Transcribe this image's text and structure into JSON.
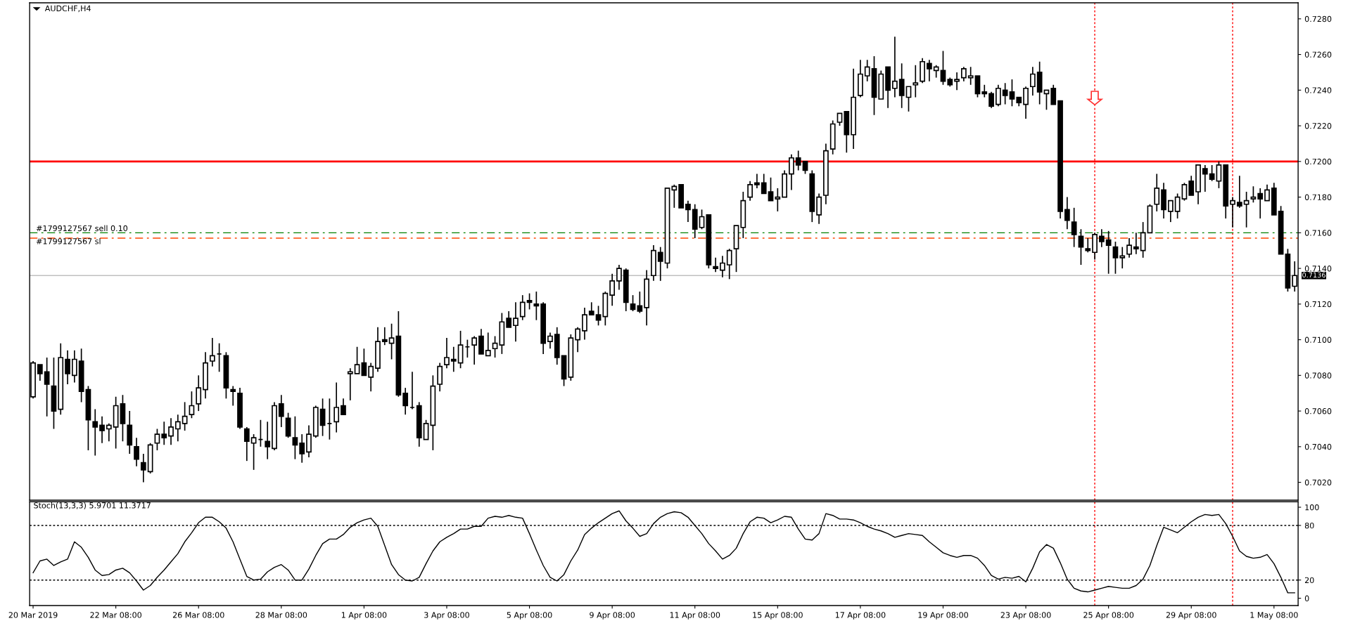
{
  "chart_data": [
    {
      "type": "candlestick",
      "title": "AUDCHF,H4",
      "categories": [
        null,
        null,
        null,
        null,
        null,
        null,
        null,
        null,
        null,
        null,
        null,
        null,
        null,
        null,
        null,
        null,
        null,
        null,
        null,
        null,
        null,
        null,
        null,
        null,
        null,
        null,
        null,
        null,
        null,
        null,
        null,
        null,
        null,
        null,
        null,
        null,
        null,
        null,
        null,
        null,
        null,
        null,
        null,
        null,
        null,
        null,
        null,
        null,
        null,
        null,
        null,
        null,
        null,
        null,
        null,
        null,
        null,
        null,
        null,
        null,
        null,
        null,
        null,
        null,
        null,
        null,
        null,
        null,
        null,
        null,
        null,
        null,
        null,
        null,
        null,
        null,
        null,
        null,
        null,
        null,
        null,
        null,
        null,
        null,
        null,
        null,
        null,
        null,
        null,
        null,
        null,
        null,
        null,
        null,
        null,
        null,
        null,
        null,
        null,
        null,
        null,
        null,
        null,
        null,
        null,
        null,
        null,
        null,
        null,
        null,
        null,
        null,
        null,
        null,
        null,
        null,
        null,
        null,
        null,
        null,
        null,
        null,
        null,
        null,
        null,
        null,
        null,
        null,
        null,
        null,
        null,
        null,
        null,
        null,
        null,
        null,
        null,
        null,
        null,
        null,
        null,
        null,
        null,
        null,
        null,
        null,
        null,
        null,
        null,
        null,
        null,
        null,
        null,
        null,
        null,
        null,
        null,
        null,
        null,
        null,
        null,
        null,
        null,
        null,
        null,
        null,
        null,
        null,
        null,
        null,
        null,
        null,
        null,
        null,
        null,
        null,
        null,
        null,
        null,
        null,
        null,
        null,
        null,
        null
      ],
      "ohlc": [
        [
          0.7068,
          0.7088,
          0.7067,
          0.7087
        ],
        [
          0.7086,
          0.7086,
          0.7077,
          0.7081
        ],
        [
          0.7082,
          0.709,
          0.7057,
          0.7075
        ],
        [
          0.7074,
          0.709,
          0.705,
          0.706
        ],
        [
          0.7061,
          0.7098,
          0.7058,
          0.709
        ],
        [
          0.7089,
          0.7094,
          0.7075,
          0.7081
        ],
        [
          0.708,
          0.7094,
          0.7076,
          0.7089
        ],
        [
          0.7088,
          0.7095,
          0.7065,
          0.7071
        ],
        [
          0.7072,
          0.7074,
          0.7038,
          0.7055
        ],
        [
          0.7054,
          0.7061,
          0.7035,
          0.7051
        ],
        [
          0.7052,
          0.7057,
          0.7042,
          0.7049
        ],
        [
          0.705,
          0.7053,
          0.7043,
          0.7052
        ],
        [
          0.7051,
          0.7068,
          0.7039,
          0.7063
        ],
        [
          0.7064,
          0.7069,
          0.7043,
          0.7053
        ],
        [
          0.7052,
          0.706,
          0.7036,
          0.7041
        ],
        [
          0.704,
          0.7045,
          0.7029,
          0.7033
        ],
        [
          0.7031,
          0.7036,
          0.702,
          0.7027
        ],
        [
          0.7026,
          0.7042,
          0.7025,
          0.7041
        ],
        [
          0.7042,
          0.705,
          0.7038,
          0.7047
        ],
        [
          0.7047,
          0.7054,
          0.7041,
          0.7045
        ],
        [
          0.7046,
          0.7056,
          0.7041,
          0.7051
        ],
        [
          0.705,
          0.7058,
          0.7043,
          0.7054
        ],
        [
          0.7053,
          0.7065,
          0.7049,
          0.7057
        ],
        [
          0.7058,
          0.7071,
          0.7056,
          0.7063
        ],
        [
          0.7064,
          0.708,
          0.706,
          0.7073
        ],
        [
          0.7072,
          0.7093,
          0.7067,
          0.7087
        ],
        [
          0.7088,
          0.7101,
          0.7085,
          0.7091
        ],
        [
          0.7092,
          0.7098,
          0.7082,
          0.7092
        ],
        [
          0.7091,
          0.7093,
          0.7067,
          0.7073
        ],
        [
          0.7072,
          0.7074,
          0.7063,
          0.7071
        ],
        [
          0.707,
          0.7073,
          0.705,
          0.7051
        ],
        [
          0.705,
          0.7051,
          0.7032,
          0.7043
        ],
        [
          0.7042,
          0.7047,
          0.7027,
          0.7045
        ],
        [
          0.7044,
          0.7055,
          0.704,
          0.7044
        ],
        [
          0.7043,
          0.7054,
          0.7033,
          0.704
        ],
        [
          0.7039,
          0.7065,
          0.7038,
          0.7063
        ],
        [
          0.7064,
          0.7069,
          0.7051,
          0.7057
        ],
        [
          0.7056,
          0.7059,
          0.7045,
          0.7046
        ],
        [
          0.7045,
          0.7057,
          0.7033,
          0.7041
        ],
        [
          0.7042,
          0.7047,
          0.7031,
          0.7036
        ],
        [
          0.7037,
          0.7052,
          0.7034,
          0.7047
        ],
        [
          0.7046,
          0.7063,
          0.7045,
          0.7062
        ],
        [
          0.7061,
          0.7067,
          0.7046,
          0.7052
        ],
        [
          0.7053,
          0.7067,
          0.7044,
          0.7053
        ],
        [
          0.7054,
          0.7076,
          0.7048,
          0.7062
        ],
        [
          0.7063,
          0.7067,
          0.7058,
          0.7058
        ],
        [
          0.7081,
          0.7084,
          0.7066,
          0.7082
        ],
        [
          0.7081,
          0.7096,
          0.7081,
          0.7086
        ],
        [
          0.7087,
          0.7095,
          0.708,
          0.708
        ],
        [
          0.7079,
          0.7087,
          0.7071,
          0.7085
        ],
        [
          0.7084,
          0.7107,
          0.7082,
          0.7099
        ],
        [
          0.71,
          0.7107,
          0.7097,
          0.7099
        ],
        [
          0.7098,
          0.7109,
          0.7089,
          0.7101
        ],
        [
          0.7102,
          0.7116,
          0.7068,
          0.7069
        ],
        [
          0.707,
          0.7073,
          0.7058,
          0.7063
        ],
        [
          0.7062,
          0.7082,
          0.7061,
          0.7062
        ],
        [
          0.7063,
          0.7065,
          0.704,
          0.7045
        ],
        [
          0.7044,
          0.7055,
          0.7044,
          0.7053
        ],
        [
          0.7052,
          0.708,
          0.7038,
          0.7074
        ],
        [
          0.7075,
          0.7087,
          0.7071,
          0.7085
        ],
        [
          0.7086,
          0.7101,
          0.7084,
          0.709
        ],
        [
          0.7089,
          0.7096,
          0.7082,
          0.7088
        ],
        [
          0.7087,
          0.7105,
          0.7084,
          0.7097
        ],
        [
          0.7096,
          0.71,
          0.709,
          0.7096
        ],
        [
          0.7097,
          0.7102,
          0.7086,
          0.7101
        ],
        [
          0.7102,
          0.7106,
          0.7092,
          0.7092
        ],
        [
          0.7091,
          0.7104,
          0.7091,
          0.7094
        ],
        [
          0.7095,
          0.7102,
          0.709,
          0.7098
        ],
        [
          0.7097,
          0.7115,
          0.7092,
          0.711
        ],
        [
          0.7112,
          0.7116,
          0.7107,
          0.7107
        ],
        [
          0.7108,
          0.7121,
          0.7099,
          0.7112
        ],
        [
          0.7113,
          0.7125,
          0.7111,
          0.7121
        ],
        [
          0.7122,
          0.7126,
          0.7117,
          0.7121
        ],
        [
          0.712,
          0.7127,
          0.7111,
          0.7119
        ],
        [
          0.712,
          0.7121,
          0.7092,
          0.7098
        ],
        [
          0.7099,
          0.7104,
          0.7095,
          0.7102
        ],
        [
          0.7103,
          0.7107,
          0.7086,
          0.709
        ],
        [
          0.7091,
          0.7091,
          0.7074,
          0.7078
        ],
        [
          0.7079,
          0.7103,
          0.7077,
          0.7101
        ],
        [
          0.71,
          0.7107,
          0.7093,
          0.7106
        ],
        [
          0.7105,
          0.7118,
          0.71,
          0.7114
        ],
        [
          0.7116,
          0.7121,
          0.7114,
          0.7114
        ],
        [
          0.7114,
          0.7119,
          0.7108,
          0.7111
        ],
        [
          0.7113,
          0.7127,
          0.7108,
          0.7126
        ],
        [
          0.7125,
          0.7137,
          0.7119,
          0.7133
        ],
        [
          0.7133,
          0.7142,
          0.7128,
          0.714
        ],
        [
          0.7139,
          0.714,
          0.7116,
          0.7121
        ],
        [
          0.712,
          0.7125,
          0.7116,
          0.7117
        ],
        [
          0.7119,
          0.7127,
          0.7115,
          0.7116
        ],
        [
          0.7118,
          0.7139,
          0.7108,
          0.7134
        ],
        [
          0.7136,
          0.7153,
          0.7133,
          0.715
        ],
        [
          0.7149,
          0.7152,
          0.7133,
          0.7144
        ],
        [
          0.7143,
          0.7185,
          0.714,
          0.7185
        ],
        [
          0.7184,
          0.7187,
          0.7174,
          0.7186
        ],
        [
          0.7187,
          0.7187,
          0.7174,
          0.7174
        ],
        [
          0.7176,
          0.7178,
          0.7166,
          0.7173
        ],
        [
          0.7173,
          0.7176,
          0.7157,
          0.7162
        ],
        [
          0.7163,
          0.7173,
          0.7162,
          0.7169
        ],
        [
          0.717,
          0.717,
          0.714,
          0.7142
        ],
        [
          0.7141,
          0.7146,
          0.7138,
          0.714
        ],
        [
          0.7139,
          0.7147,
          0.7135,
          0.7143
        ],
        [
          0.7142,
          0.7151,
          0.7134,
          0.715
        ],
        [
          0.7151,
          0.7164,
          0.7138,
          0.7164
        ],
        [
          0.7163,
          0.7183,
          0.7157,
          0.7178
        ],
        [
          0.718,
          0.7189,
          0.7178,
          0.7187
        ],
        [
          0.7188,
          0.7193,
          0.7185,
          0.7187
        ],
        [
          0.7188,
          0.7193,
          0.7182,
          0.7182
        ],
        [
          0.7183,
          0.7191,
          0.7178,
          0.7178
        ],
        [
          0.7179,
          0.7185,
          0.7172,
          0.718
        ],
        [
          0.718,
          0.7195,
          0.718,
          0.7193
        ],
        [
          0.7193,
          0.7204,
          0.7184,
          0.7202
        ],
        [
          0.7202,
          0.7206,
          0.7195,
          0.7198
        ],
        [
          0.72,
          0.72,
          0.7193,
          0.7195
        ],
        [
          0.7193,
          0.7195,
          0.7166,
          0.7172
        ],
        [
          0.717,
          0.7182,
          0.7165,
          0.718
        ],
        [
          0.7181,
          0.721,
          0.7176,
          0.7206
        ],
        [
          0.7207,
          0.7223,
          0.7204,
          0.7221
        ],
        [
          0.7222,
          0.7227,
          0.722,
          0.7227
        ],
        [
          0.7228,
          0.7228,
          0.7205,
          0.7215
        ],
        [
          0.7215,
          0.7252,
          0.7207,
          0.7236
        ],
        [
          0.7237,
          0.7257,
          0.7236,
          0.7249
        ],
        [
          0.7248,
          0.7257,
          0.7245,
          0.7253
        ],
        [
          0.7252,
          0.7259,
          0.7226,
          0.7236
        ],
        [
          0.7235,
          0.7251,
          0.7235,
          0.7249
        ],
        [
          0.7253,
          0.7253,
          0.723,
          0.724
        ],
        [
          0.7241,
          0.727,
          0.7236,
          0.7245
        ],
        [
          0.7246,
          0.7255,
          0.723,
          0.7237
        ],
        [
          0.7236,
          0.7242,
          0.7228,
          0.7242
        ],
        [
          0.7243,
          0.7254,
          0.7236,
          0.7244
        ],
        [
          0.7245,
          0.7258,
          0.7244,
          0.7256
        ],
        [
          0.7255,
          0.7257,
          0.7245,
          0.7252
        ],
        [
          0.7251,
          0.7254,
          0.7247,
          0.7253
        ],
        [
          0.7251,
          0.7262,
          0.7243,
          0.7245
        ],
        [
          0.7246,
          0.7247,
          0.7242,
          0.7243
        ],
        [
          0.7245,
          0.725,
          0.724,
          0.7246
        ],
        [
          0.7247,
          0.7253,
          0.7245,
          0.7252
        ],
        [
          0.7247,
          0.7253,
          0.7243,
          0.7248
        ],
        [
          0.7248,
          0.7248,
          0.7236,
          0.7238
        ],
        [
          0.7239,
          0.7243,
          0.7236,
          0.7238
        ],
        [
          0.7238,
          0.7239,
          0.723,
          0.7231
        ],
        [
          0.7232,
          0.7243,
          0.7231,
          0.7241
        ],
        [
          0.724,
          0.7244,
          0.7232,
          0.7237
        ],
        [
          0.7239,
          0.7246,
          0.7231,
          0.7235
        ],
        [
          0.7236,
          0.7236,
          0.7231,
          0.7233
        ],
        [
          0.7232,
          0.7242,
          0.7224,
          0.7241
        ],
        [
          0.7242,
          0.7253,
          0.7237,
          0.7249
        ],
        [
          0.725,
          0.7256,
          0.7232,
          0.7239
        ],
        [
          0.7238,
          0.724,
          0.7229,
          0.724
        ],
        [
          0.7241,
          0.7243,
          0.7232,
          0.7232
        ],
        [
          0.7234,
          0.7234,
          0.7168,
          0.7172
        ],
        [
          0.7173,
          0.718,
          0.7162,
          0.7167
        ],
        [
          0.7166,
          0.7174,
          0.7152,
          0.7159
        ],
        [
          0.7158,
          0.7162,
          0.7142,
          0.7152
        ],
        [
          0.7151,
          0.7157,
          0.7149,
          0.715
        ],
        [
          0.7149,
          0.716,
          0.7145,
          0.7159
        ],
        [
          0.7158,
          0.7162,
          0.7152,
          0.7155
        ],
        [
          0.7156,
          0.7161,
          0.7137,
          0.7153
        ],
        [
          0.7152,
          0.7155,
          0.7137,
          0.7146
        ],
        [
          0.7146,
          0.7152,
          0.714,
          0.7147
        ],
        [
          0.7148,
          0.7157,
          0.7146,
          0.7153
        ],
        [
          0.7152,
          0.716,
          0.7148,
          0.7151
        ],
        [
          0.715,
          0.7166,
          0.7146,
          0.716
        ],
        [
          0.716,
          0.7176,
          0.716,
          0.7175
        ],
        [
          0.7176,
          0.7193,
          0.7172,
          0.7185
        ],
        [
          0.7184,
          0.7188,
          0.7168,
          0.7173
        ],
        [
          0.7172,
          0.7178,
          0.7166,
          0.7178
        ],
        [
          0.7172,
          0.7182,
          0.7168,
          0.718
        ],
        [
          0.7179,
          0.7188,
          0.7178,
          0.7187
        ],
        [
          0.7189,
          0.7192,
          0.7181,
          0.7181
        ],
        [
          0.7183,
          0.7198,
          0.7176,
          0.7198
        ],
        [
          0.7196,
          0.7198,
          0.7183,
          0.7193
        ],
        [
          0.7193,
          0.7198,
          0.7189,
          0.719
        ],
        [
          0.7189,
          0.72,
          0.7185,
          0.7198
        ],
        [
          0.7198,
          0.7198,
          0.7168,
          0.7175
        ],
        [
          0.7176,
          0.718,
          0.7163,
          0.7178
        ],
        [
          0.7177,
          0.7192,
          0.7174,
          0.7175
        ],
        [
          0.7176,
          0.7183,
          0.7163,
          0.7178
        ],
        [
          0.7179,
          0.7186,
          0.7177,
          0.718
        ],
        [
          0.7182,
          0.7185,
          0.7168,
          0.7179
        ],
        [
          0.7178,
          0.7187,
          0.7178,
          0.7184
        ],
        [
          0.7185,
          0.7188,
          0.717,
          0.717
        ],
        [
          0.7172,
          0.7175,
          0.7148,
          0.7148
        ],
        [
          0.7148,
          0.7151,
          0.7127,
          0.7129
        ],
        [
          0.713,
          0.7144,
          0.7127,
          0.7136
        ]
      ],
      "ylim": [
        0.701,
        0.7289
      ],
      "yticks": [
        {
          "value": 0.702,
          "label": "0.7020"
        },
        {
          "value": 0.704,
          "label": "0.7040"
        },
        {
          "value": 0.706,
          "label": "0.7060"
        },
        {
          "value": 0.708,
          "label": "0.7080"
        },
        {
          "value": 0.71,
          "label": "0.7100"
        },
        {
          "value": 0.712,
          "label": "0.7120"
        },
        {
          "value": 0.714,
          "label": "0.7140"
        },
        {
          "value": 0.716,
          "label": "0.7160"
        },
        {
          "value": 0.718,
          "label": "0.7180"
        },
        {
          "value": 0.72,
          "label": "0.7200"
        },
        {
          "value": 0.722,
          "label": "0.7220"
        },
        {
          "value": 0.724,
          "label": "0.7240"
        },
        {
          "value": 0.726,
          "label": "0.7260"
        },
        {
          "value": 0.728,
          "label": "0.7280"
        }
      ],
      "tick_labels": "y",
      "ref_lines": [
        {
          "axis": "y",
          "value": 0.72,
          "color": "#ff0000",
          "line_style": "solid"
        },
        {
          "axis": "y",
          "value": 0.716,
          "label": "#1799127567 sell 0.10",
          "color": "#008000",
          "line_style": "dashdot"
        },
        {
          "axis": "y",
          "value": 0.7157,
          "label": "#1799127567 sl",
          "color": "#ff4500",
          "line_style": "dashdot"
        },
        {
          "axis": "y",
          "value": 0.7136,
          "label": "0.7136",
          "color": "#c0c0c0",
          "line_style": "solid"
        }
      ]
    },
    {
      "type": "line",
      "title": "Stoch(13,3,3) 5.9701 11.3717",
      "categories": [
        "20 Mar 2019",
        null,
        null,
        null,
        null,
        null,
        null,
        null,
        null,
        null,
        null,
        null,
        "22 Mar 08:00",
        null,
        null,
        null,
        null,
        null,
        null,
        null,
        null,
        null,
        null,
        null,
        "26 Mar 08:00",
        null,
        null,
        null,
        null,
        null,
        null,
        null,
        null,
        null,
        null,
        null,
        "28 Mar 08:00",
        null,
        null,
        null,
        null,
        null,
        null,
        null,
        null,
        null,
        null,
        null,
        "1 Apr 08:00",
        null,
        null,
        null,
        null,
        null,
        null,
        null,
        null,
        null,
        null,
        null,
        "3 Apr 08:00",
        null,
        null,
        null,
        null,
        null,
        null,
        null,
        null,
        null,
        null,
        null,
        "5 Apr 08:00",
        null,
        null,
        null,
        null,
        null,
        null,
        null,
        null,
        null,
        null,
        null,
        "9 Apr 08:00",
        null,
        null,
        null,
        null,
        null,
        null,
        null,
        null,
        null,
        null,
        null,
        "11 Apr 08:00",
        null,
        null,
        null,
        null,
        null,
        null,
        null,
        null,
        null,
        null,
        null,
        "15 Apr 08:00",
        null,
        null,
        null,
        null,
        null,
        null,
        null,
        null,
        null,
        null,
        null,
        "17 Apr 08:00",
        null,
        null,
        null,
        null,
        null,
        null,
        null,
        null,
        null,
        null,
        null,
        "19 Apr 08:00",
        null,
        null,
        null,
        null,
        null,
        null,
        null,
        null,
        null,
        null,
        null,
        "23 Apr 08:00",
        null,
        null,
        null,
        null,
        null,
        null,
        null,
        null,
        null,
        null,
        null,
        "25 Apr 08:00",
        null,
        null,
        null,
        null,
        null,
        null,
        null,
        null,
        null,
        null,
        null,
        "29 Apr 08:00",
        null,
        null,
        null,
        null,
        null,
        null,
        null,
        null,
        null,
        null,
        null,
        "1 May 08:00",
        null,
        null,
        null
      ],
      "series": [
        {
          "color": "#000000",
          "values": [
            28,
            41,
            43,
            36,
            40,
            43,
            62,
            56,
            45,
            31,
            25,
            26,
            31,
            33,
            28,
            19,
            9,
            14,
            23,
            31,
            40,
            49,
            62,
            72,
            83,
            89,
            89,
            84,
            77,
            62,
            43,
            24,
            20,
            21,
            29,
            34,
            37,
            31,
            20,
            20,
            32,
            47,
            60,
            65,
            65,
            70,
            78,
            83,
            86,
            88,
            79,
            58,
            37,
            26,
            20,
            19,
            23,
            38,
            52,
            62,
            67,
            71,
            76,
            76,
            79,
            79,
            88,
            90,
            89,
            91,
            89,
            88,
            71,
            53,
            36,
            23,
            19,
            26,
            41,
            53,
            70,
            77,
            83,
            88,
            93,
            96,
            85,
            77,
            68,
            71,
            82,
            89,
            93,
            95,
            94,
            89,
            80,
            71,
            60,
            52,
            43,
            47,
            55,
            71,
            84,
            89,
            88,
            83,
            86,
            90,
            89,
            76,
            65,
            64,
            71,
            93,
            91,
            87,
            87,
            86,
            83,
            79,
            76,
            74,
            71,
            67,
            69,
            71,
            70,
            69,
            62,
            56,
            50,
            47,
            45,
            47,
            47,
            44,
            36,
            25,
            21,
            23,
            22,
            24,
            18,
            33,
            51,
            59,
            55,
            39,
            21,
            11,
            8,
            7,
            9,
            11,
            13,
            12,
            11,
            11,
            14,
            21,
            36,
            58,
            78,
            75,
            72,
            78,
            84,
            89,
            92,
            91,
            92,
            82,
            68,
            52,
            46,
            44,
            45,
            48,
            38,
            23,
            6,
            6
          ]
        }
      ],
      "ylim": [
        -8,
        106
      ],
      "yticks": [
        0,
        20,
        80,
        100
      ],
      "ref_lines": [
        {
          "axis": "y",
          "value": 80,
          "color": "#000000",
          "line_style": "dotted"
        },
        {
          "axis": "y",
          "value": 20,
          "color": "#000000",
          "line_style": "dotted"
        }
      ]
    }
  ]
}
